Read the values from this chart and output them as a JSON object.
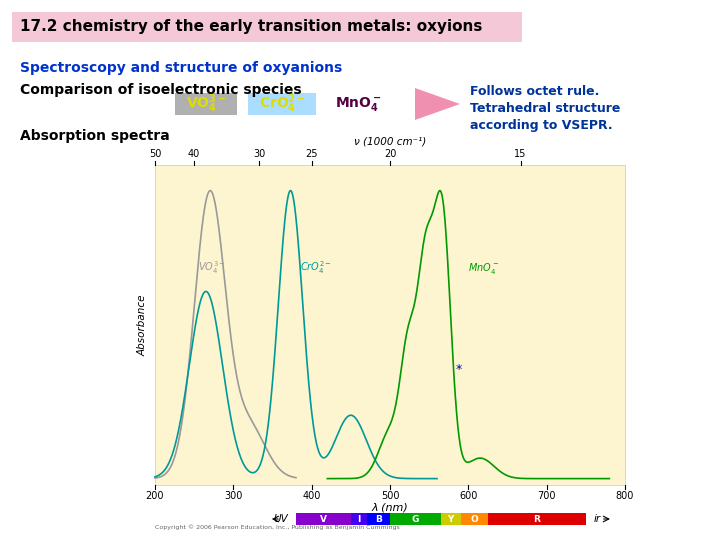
{
  "title": "17.2 chemistry of the early transition metals: oxyions",
  "title_bg": "#f5c8d8",
  "subtitle1": "Spectroscopy and structure of oxyanions",
  "subtitle2": "Comparison of isoelectronic species",
  "absorption_label": "Absorption spectra",
  "vo4_bg": "#b0b0b0",
  "cro4_bg": "#aaddff",
  "label_color": "#dddd00",
  "mno4_color": "#550044",
  "right_text": "Follows octet rule.\nTetrahedral structure\naccording to VSEPR.",
  "arrow_color": "#f090b0",
  "chart_bg": "#fdf5d0",
  "spectrum_nu_label": "ν (1000 cm⁻¹)",
  "spectrum_lambda_label": "λ (nm)",
  "vo4_curve_color": "#999999",
  "cro4_curve_color": "#009999",
  "mno4_curve_color": "#009900",
  "copyright_text": "Copyright © 2006 Pearson Education, Inc., Publishing as Benjamin Cummings"
}
